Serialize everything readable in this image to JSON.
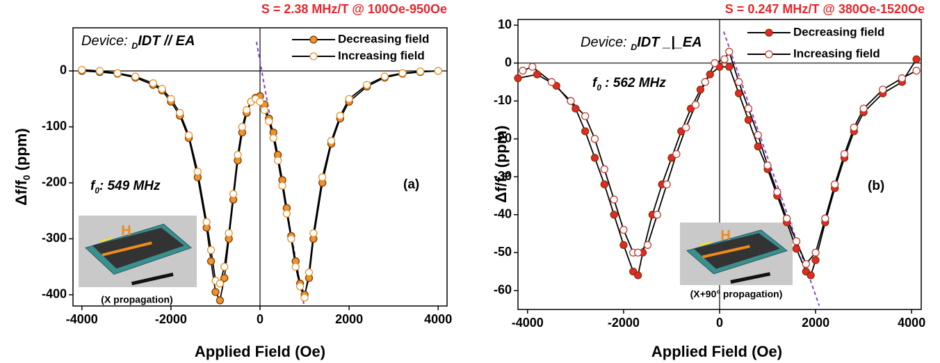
{
  "chart_data": [
    {
      "type": "line",
      "title": "S = 2.38 MHz/T @ 100Oe-950Oe",
      "title_color": "#e8262b",
      "x_label": "Applied Field (Oe)",
      "y_label": [
        "Δf/f",
        "0",
        " (ppm)"
      ],
      "device": [
        "Device: ",
        "D",
        "IDT // EA"
      ],
      "f0": [
        "f",
        "0",
        ": 549 MHz"
      ],
      "panel": "(a)",
      "inset": {
        "field": "H",
        "caption": "(X propagation)"
      },
      "xlim": [
        -4200,
        4200
      ],
      "xticks": [
        -4000,
        -2000,
        0,
        2000,
        4000
      ],
      "ylim": [
        -420,
        77
      ],
      "yticks": [
        0,
        -100,
        -200,
        -300,
        -400
      ],
      "series": [
        {
          "name": "Decreasing field",
          "color": "#f0932b",
          "marker": "filled",
          "x": [
            -4000,
            -3600,
            -3200,
            -2800,
            -2400,
            -2200,
            -2000,
            -1800,
            -1600,
            -1400,
            -1200,
            -1100,
            -1000,
            -900,
            -800,
            -700,
            -600,
            -500,
            -400,
            -300,
            -200,
            -100,
            0,
            100,
            200,
            300,
            400,
            500,
            600,
            700,
            800,
            900,
            1000,
            1100,
            1200,
            1400,
            1600,
            1800,
            2000,
            2400,
            2800,
            3200,
            3600,
            4000
          ],
          "values": [
            0,
            -2,
            -5,
            -12,
            -25,
            -35,
            -55,
            -80,
            -120,
            -190,
            -280,
            -340,
            -395,
            -410,
            -370,
            -300,
            -230,
            -160,
            -110,
            -75,
            -55,
            -48,
            -45,
            -60,
            -85,
            -110,
            -150,
            -195,
            -245,
            -295,
            -340,
            -380,
            -400,
            -370,
            -300,
            -200,
            -130,
            -85,
            -55,
            -28,
            -12,
            -5,
            -2,
            0
          ]
        },
        {
          "name": "Increasing field",
          "color": "#e8922a",
          "marker": "hollow",
          "x": [
            -4000,
            -3600,
            -3200,
            -2800,
            -2400,
            -2200,
            -2000,
            -1800,
            -1600,
            -1400,
            -1200,
            -1100,
            -1000,
            -900,
            -800,
            -700,
            -600,
            -500,
            -400,
            -300,
            -200,
            -100,
            0,
            100,
            200,
            300,
            400,
            500,
            600,
            700,
            800,
            900,
            1000,
            1100,
            1200,
            1400,
            1600,
            1800,
            2000,
            2400,
            2800,
            3200,
            3600,
            4000
          ],
          "values": [
            2,
            0,
            -4,
            -10,
            -22,
            -32,
            -50,
            -75,
            -115,
            -180,
            -270,
            -320,
            -375,
            -380,
            -350,
            -290,
            -220,
            -150,
            -100,
            -70,
            -55,
            -50,
            -55,
            -70,
            -90,
            -120,
            -160,
            -205,
            -255,
            -300,
            -350,
            -385,
            -405,
            -360,
            -290,
            -190,
            -125,
            -80,
            -50,
            -25,
            -10,
            -4,
            -1,
            0
          ]
        }
      ],
      "fit": {
        "x": [
          -80,
          985
        ],
        "values": [
          52,
          -417
        ],
        "color": "#8b3fd9"
      }
    },
    {
      "type": "line",
      "title": "S = 0.247 MHz/T @ 380Oe-1520Oe",
      "title_color": "#e8262b",
      "x_label": "Applied Field (Oe)",
      "y_label": [
        "Δf/f",
        "0",
        " (ppm)"
      ],
      "device": [
        "Device: ",
        "D",
        "IDT _|_EA"
      ],
      "f0": [
        "f",
        "0",
        " : 562 MHz"
      ],
      "panel": "(b)",
      "inset": {
        "field": "H",
        "caption": "(X+90° propagation)"
      },
      "xlim": [
        -4200,
        4200
      ],
      "xticks": [
        -4000,
        -2000,
        0,
        2000,
        4000
      ],
      "ylim": [
        -65,
        11.5
      ],
      "yticks": [
        10,
        0,
        -10,
        -20,
        -30,
        -40,
        -50,
        -60
      ],
      "series": [
        {
          "name": "Decreasing field",
          "color": "#e8262b",
          "marker": "filled",
          "x": [
            -4200,
            -3800,
            -3400,
            -3000,
            -2800,
            -2600,
            -2400,
            -2200,
            -2000,
            -1800,
            -1700,
            -1600,
            -1400,
            -1200,
            -1000,
            -800,
            -600,
            -400,
            -200,
            0,
            200,
            400,
            600,
            800,
            1000,
            1200,
            1400,
            1600,
            1800,
            1900,
            2000,
            2200,
            2400,
            2600,
            2800,
            3000,
            3400,
            3800,
            4100
          ],
          "values": [
            -4,
            -3,
            -6,
            -12,
            -18,
            -25,
            -32,
            -40,
            -48,
            -55,
            -56,
            -50,
            -40,
            -32,
            -25,
            -18,
            -12,
            -7,
            -3,
            -1,
            -1,
            -8,
            -15,
            -22,
            -28,
            -35,
            -42,
            -49,
            -55,
            -56,
            -52,
            -42,
            -33,
            -25,
            -18,
            -13,
            -8,
            -5,
            1
          ]
        },
        {
          "name": "Increasing field",
          "color": "#c0392b",
          "marker": "hollow",
          "x": [
            -4100,
            -3900,
            -3500,
            -3100,
            -2800,
            -2600,
            -2400,
            -2200,
            -2000,
            -1800,
            -1700,
            -1500,
            -1300,
            -1100,
            -900,
            -700,
            -500,
            -300,
            -100,
            100,
            200,
            400,
            600,
            800,
            1000,
            1200,
            1400,
            1600,
            1800,
            2000,
            2200,
            2400,
            2600,
            2800,
            3000,
            3400,
            3800,
            4100
          ],
          "values": [
            -2,
            -1,
            -5,
            -10,
            -14,
            -20,
            -28,
            -36,
            -44,
            -50,
            -50,
            -48,
            -40,
            -32,
            -24,
            -17,
            -11,
            -5,
            0,
            1,
            3,
            -5,
            -12,
            -19,
            -27,
            -34,
            -41,
            -47,
            -53,
            -50,
            -41,
            -32,
            -24,
            -17,
            -12,
            -7,
            -4,
            -2
          ]
        }
      ],
      "fit": {
        "x": [
          85,
          2075
        ],
        "values": [
          8.3,
          -64
        ],
        "color": "#8b3fd9"
      }
    }
  ]
}
